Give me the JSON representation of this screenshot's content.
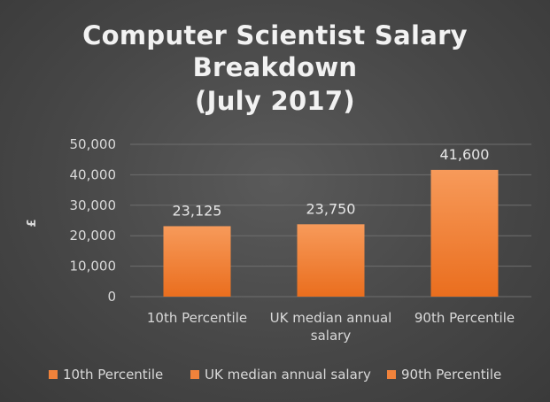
{
  "chart_data": {
    "type": "bar",
    "title_lines": [
      "Computer Scientist Salary",
      "Breakdown",
      "(July 2017)"
    ],
    "ylabel": "£",
    "xlabel": "",
    "ylim": [
      0,
      50000
    ],
    "ytick_values": [
      0,
      10000,
      20000,
      30000,
      40000,
      50000
    ],
    "ytick_labels": [
      "0",
      "10,000",
      "20,000",
      "30,000",
      "40,000",
      "50,000"
    ],
    "grid": true,
    "legend_position": "bottom",
    "categories": [
      {
        "label_lines": [
          "10th Percentile"
        ],
        "value": 23125,
        "value_label": "23,125",
        "legend": "10th Percentile"
      },
      {
        "label_lines": [
          "UK median annual",
          "salary"
        ],
        "value": 23750,
        "value_label": "23,750",
        "legend": "UK median annual salary"
      },
      {
        "label_lines": [
          "90th Percentile"
        ],
        "value": 41600,
        "value_label": "41,600",
        "legend": "90th Percentile"
      }
    ],
    "colors": {
      "bar_top": "#f79a5a",
      "bar_bottom": "#ea6e1e",
      "legend_swatch": "#f0823b",
      "gridline": "#6e6e6e",
      "background": "#404040"
    }
  }
}
